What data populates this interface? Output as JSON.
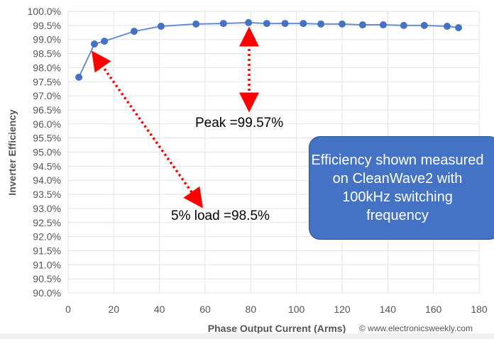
{
  "chart_data": {
    "type": "line",
    "xlabel": "Phase Output Current (Arms)",
    "ylabel": "Inverter Efficiency",
    "xlim": [
      0,
      180
    ],
    "ylim": [
      90.0,
      100.0
    ],
    "x_ticks": [
      "0",
      "20",
      "40",
      "60",
      "80",
      "100",
      "120",
      "140",
      "160",
      "180"
    ],
    "y_ticks": [
      "90.0%",
      "90.5%",
      "91.0%",
      "91.5%",
      "92.0%",
      "92.5%",
      "93.0%",
      "93.5%",
      "94.0%",
      "94.5%",
      "95.0%",
      "95.5%",
      "96.0%",
      "96.5%",
      "97.0%",
      "97.5%",
      "98.0%",
      "98.5%",
      "99.0%",
      "99.5%",
      "100.0%"
    ],
    "grid": true,
    "series": [
      {
        "color": "#4472C4",
        "x": [
          4.7,
          11.5,
          15.9,
          28.9,
          40.7,
          56,
          68,
          79,
          87,
          95,
          103,
          110.7,
          120,
          129,
          138,
          147,
          156,
          166,
          171
        ],
        "y": [
          97.66,
          98.84,
          98.94,
          99.29,
          99.47,
          99.55,
          99.57,
          99.6,
          99.57,
          99.57,
          99.57,
          99.55,
          99.55,
          99.52,
          99.52,
          99.5,
          99.5,
          99.47,
          99.42
        ]
      }
    ],
    "annotations": {
      "peak": "Peak =99.57%",
      "load": "5% load =98.5%",
      "note": "Efficiency shown measured on CleanWave2 with 100kHz switching frequency"
    },
    "annotation_color": "#FF0000"
  },
  "watermark": "© www.electronicsweekly.com"
}
